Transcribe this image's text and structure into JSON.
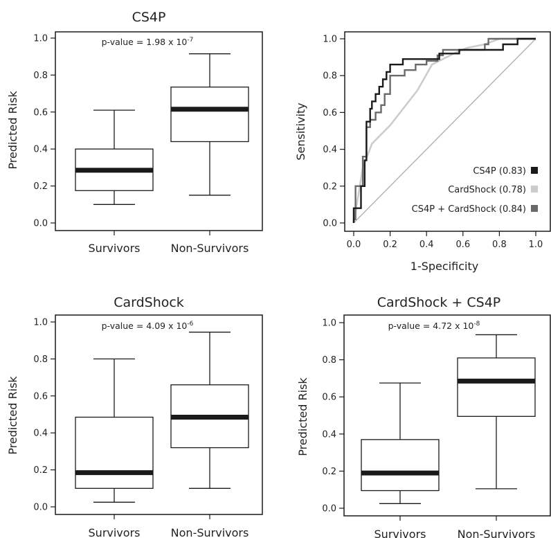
{
  "chart_data": [
    {
      "id": "cs4p",
      "type": "box",
      "title": "CS4P",
      "ylabel": "Predicted Risk",
      "ylim": [
        0.0,
        1.0
      ],
      "yticks": [
        "0.0",
        "0.2",
        "0.4",
        "0.6",
        "0.8",
        "1.0"
      ],
      "categories": [
        "Survivors",
        "Non-Survivors"
      ],
      "annotation": {
        "prefix": "p-value = ",
        "mantissa": "1.98 x 10",
        "exponent": "-7"
      },
      "boxes": [
        {
          "category": "Survivors",
          "min": 0.1,
          "q1": 0.175,
          "median": 0.285,
          "q3": 0.4,
          "max": 0.61
        },
        {
          "category": "Non-Survivors",
          "min": 0.15,
          "q1": 0.44,
          "median": 0.615,
          "q3": 0.735,
          "max": 0.915
        }
      ]
    },
    {
      "id": "roc",
      "type": "line",
      "xlabel": "1-Specificity",
      "ylabel": "Sensitivity",
      "xlim": [
        0.0,
        1.0
      ],
      "ylim": [
        0.0,
        1.0
      ],
      "xticks": [
        "0.0",
        "0.2",
        "0.4",
        "0.6",
        "0.8",
        "1.0"
      ],
      "yticks": [
        "0.0",
        "0.2",
        "0.4",
        "0.6",
        "0.8",
        "1.0"
      ],
      "legend_position": "bottom-right",
      "series": [
        {
          "name": "CS4P (0.83)",
          "color": "#1a1a1a",
          "points": [
            [
              0,
              0
            ],
            [
              0,
              0.08
            ],
            [
              0.04,
              0.08
            ],
            [
              0.04,
              0.2
            ],
            [
              0.06,
              0.2
            ],
            [
              0.06,
              0.34
            ],
            [
              0.07,
              0.34
            ],
            [
              0.07,
              0.55
            ],
            [
              0.09,
              0.55
            ],
            [
              0.09,
              0.62
            ],
            [
              0.1,
              0.62
            ],
            [
              0.1,
              0.66
            ],
            [
              0.12,
              0.66
            ],
            [
              0.12,
              0.7
            ],
            [
              0.14,
              0.7
            ],
            [
              0.14,
              0.74
            ],
            [
              0.16,
              0.74
            ],
            [
              0.16,
              0.78
            ],
            [
              0.18,
              0.78
            ],
            [
              0.18,
              0.82
            ],
            [
              0.2,
              0.82
            ],
            [
              0.2,
              0.86
            ],
            [
              0.27,
              0.86
            ],
            [
              0.27,
              0.89
            ],
            [
              0.47,
              0.89
            ],
            [
              0.47,
              0.92
            ],
            [
              0.58,
              0.92
            ],
            [
              0.58,
              0.94
            ],
            [
              0.82,
              0.94
            ],
            [
              0.82,
              0.97
            ],
            [
              0.9,
              0.97
            ],
            [
              0.9,
              1.0
            ],
            [
              1.0,
              1.0
            ]
          ]
        },
        {
          "name": "CardShock (0.78)",
          "color": "#cccccc",
          "points": [
            [
              0,
              0
            ],
            [
              0.02,
              0.12
            ],
            [
              0.05,
              0.3
            ],
            [
              0.1,
              0.43
            ],
            [
              0.2,
              0.53
            ],
            [
              0.35,
              0.72
            ],
            [
              0.43,
              0.86
            ],
            [
              0.55,
              0.92
            ],
            [
              0.62,
              0.95
            ],
            [
              0.72,
              0.97
            ],
            [
              0.8,
              1.0
            ],
            [
              1.0,
              1.0
            ]
          ]
        },
        {
          "name": "CS4P + CardShock (0.84)",
          "color": "#6a6a6a",
          "points": [
            [
              0,
              0
            ],
            [
              0,
              0.02
            ],
            [
              0.01,
              0.02
            ],
            [
              0.01,
              0.2
            ],
            [
              0.05,
              0.2
            ],
            [
              0.05,
              0.36
            ],
            [
              0.07,
              0.36
            ],
            [
              0.07,
              0.52
            ],
            [
              0.09,
              0.52
            ],
            [
              0.09,
              0.56
            ],
            [
              0.12,
              0.56
            ],
            [
              0.12,
              0.6
            ],
            [
              0.15,
              0.6
            ],
            [
              0.15,
              0.64
            ],
            [
              0.17,
              0.64
            ],
            [
              0.17,
              0.7
            ],
            [
              0.2,
              0.7
            ],
            [
              0.2,
              0.8
            ],
            [
              0.28,
              0.8
            ],
            [
              0.28,
              0.83
            ],
            [
              0.34,
              0.83
            ],
            [
              0.34,
              0.86
            ],
            [
              0.4,
              0.86
            ],
            [
              0.4,
              0.88
            ],
            [
              0.46,
              0.88
            ],
            [
              0.46,
              0.91
            ],
            [
              0.49,
              0.91
            ],
            [
              0.49,
              0.94
            ],
            [
              0.72,
              0.94
            ],
            [
              0.72,
              0.97
            ],
            [
              0.74,
              0.97
            ],
            [
              0.74,
              1.0
            ],
            [
              1.0,
              1.0
            ]
          ]
        },
        {
          "name": "",
          "color": "#b0b0b0",
          "points": [
            [
              0,
              0
            ],
            [
              1,
              1
            ]
          ],
          "reference": true
        }
      ]
    },
    {
      "id": "cardshock",
      "type": "box",
      "title": "CardShock",
      "ylabel": "Predicted Risk",
      "ylim": [
        0.0,
        1.0
      ],
      "yticks": [
        "0.0",
        "0.2",
        "0.4",
        "0.6",
        "0.8",
        "1.0"
      ],
      "categories": [
        "Survivors",
        "Non-Survivors"
      ],
      "annotation": {
        "prefix": "p-value = ",
        "mantissa": "4.09 x 10",
        "exponent": "-6"
      },
      "boxes": [
        {
          "category": "Survivors",
          "min": 0.025,
          "q1": 0.1,
          "median": 0.185,
          "q3": 0.485,
          "max": 0.8
        },
        {
          "category": "Non-Survivors",
          "min": 0.1,
          "q1": 0.32,
          "median": 0.485,
          "q3": 0.66,
          "max": 0.945
        }
      ]
    },
    {
      "id": "combined",
      "type": "box",
      "title": "CardShock + CS4P",
      "ylabel": "Predicted Risk",
      "ylim": [
        0.0,
        1.0
      ],
      "yticks": [
        "0.0",
        "0.2",
        "0.4",
        "0.6",
        "0.8",
        "1.0"
      ],
      "categories": [
        "Survivors",
        "Non-Survivors"
      ],
      "annotation": {
        "prefix": "p-value = ",
        "mantissa": "4.72 x 10",
        "exponent": "-8"
      },
      "boxes": [
        {
          "category": "Survivors",
          "min": 0.025,
          "q1": 0.095,
          "median": 0.19,
          "q3": 0.37,
          "max": 0.675
        },
        {
          "category": "Non-Survivors",
          "min": 0.105,
          "q1": 0.495,
          "median": 0.685,
          "q3": 0.81,
          "max": 0.935
        }
      ]
    }
  ]
}
